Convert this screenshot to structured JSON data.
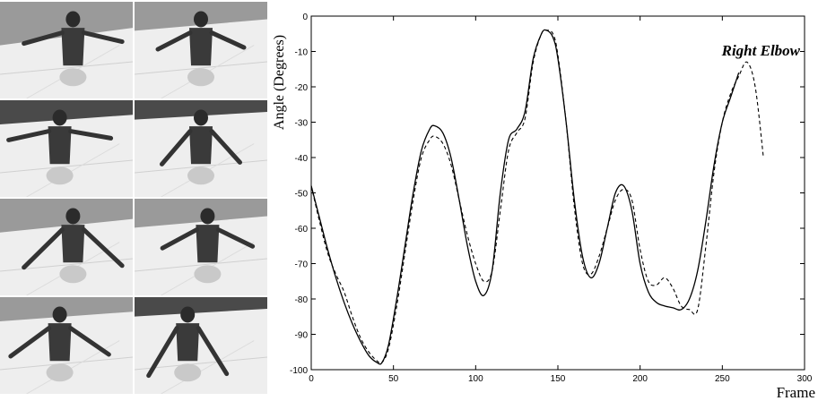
{
  "chart_data": {
    "type": "line",
    "title": "Right Elbow",
    "xlabel": "Frame",
    "ylabel": "Angle (Degrees)",
    "xlim": [
      0,
      300
    ],
    "ylim": [
      -100,
      0
    ],
    "xticks": [
      "0",
      "50",
      "100",
      "150",
      "200",
      "250",
      "300"
    ],
    "yticks": [
      "0",
      "-10",
      "-20",
      "-30",
      "-40",
      "-50",
      "-60",
      "-70",
      "-80",
      "-90",
      "-100"
    ],
    "grid": false,
    "series": [
      {
        "style": "solid",
        "color": "#000000",
        "x": [
          0,
          5,
          10,
          15,
          20,
          25,
          30,
          35,
          40,
          43,
          47,
          52,
          57,
          62,
          67,
          72,
          75,
          80,
          85,
          90,
          95,
          100,
          105,
          110,
          115,
          120,
          125,
          130,
          135,
          140,
          143,
          147,
          150,
          155,
          160,
          165,
          170,
          175,
          180,
          185,
          190,
          195,
          200,
          205,
          210,
          215,
          220,
          225,
          230,
          235,
          240,
          245,
          250,
          255,
          260
        ],
        "y": [
          -48,
          -57,
          -66,
          -74,
          -81,
          -87,
          -92,
          -96,
          -98,
          -98,
          -93,
          -80,
          -65,
          -50,
          -38,
          -32,
          -31,
          -33,
          -40,
          -52,
          -65,
          -75,
          -79,
          -72,
          -50,
          -35,
          -32,
          -27,
          -12,
          -5,
          -4,
          -6,
          -12,
          -30,
          -52,
          -68,
          -74,
          -70,
          -60,
          -50,
          -48,
          -55,
          -70,
          -78,
          -81,
          -82,
          -82.5,
          -83,
          -80,
          -72,
          -58,
          -42,
          -30,
          -23,
          -16
        ]
      },
      {
        "style": "dashed",
        "color": "#000000",
        "x": [
          0,
          5,
          10,
          15,
          20,
          25,
          30,
          35,
          40,
          43,
          47,
          52,
          57,
          62,
          67,
          72,
          75,
          80,
          85,
          90,
          95,
          100,
          105,
          110,
          115,
          120,
          125,
          130,
          135,
          140,
          143,
          147,
          150,
          155,
          160,
          165,
          170,
          175,
          180,
          185,
          190,
          195,
          200,
          205,
          210,
          215,
          220,
          225,
          230,
          235,
          240,
          245,
          250,
          255,
          260,
          265,
          270,
          275
        ],
        "y": [
          -48,
          -58,
          -67,
          -73,
          -78,
          -85,
          -91,
          -95,
          -97.5,
          -98,
          -94,
          -82,
          -67,
          -52,
          -40,
          -35,
          -34,
          -36,
          -42,
          -52,
          -62,
          -70,
          -75,
          -72,
          -55,
          -38,
          -33,
          -29,
          -13,
          -5,
          -4,
          -5,
          -11,
          -30,
          -54,
          -70,
          -73,
          -68,
          -60,
          -52,
          -49,
          -52,
          -66,
          -75,
          -76,
          -74,
          -77,
          -82,
          -83,
          -83,
          -65,
          -44,
          -30,
          -22,
          -17,
          -13,
          -20,
          -40
        ]
      }
    ]
  }
}
